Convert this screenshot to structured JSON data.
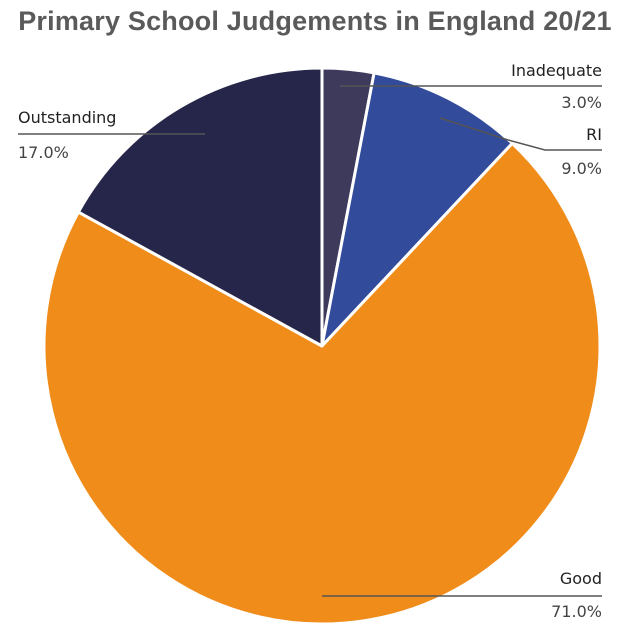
{
  "chart_data": {
    "type": "pie",
    "title": "Primary School Judgements in England 20/21",
    "slices": [
      {
        "label": "Inadequate",
        "value": 3.0,
        "display": "3.0%",
        "color": "#3d3a5c"
      },
      {
        "label": "RI",
        "value": 9.0,
        "display": "9.0%",
        "color": "#324b9a"
      },
      {
        "label": "Good",
        "value": 71.0,
        "display": "71.0%",
        "color": "#f08c1a"
      },
      {
        "label": "Outstanding",
        "value": 17.0,
        "display": "17.0%",
        "color": "#26264a"
      }
    ],
    "start_angle": "12 o'clock",
    "direction": "clockwise"
  }
}
